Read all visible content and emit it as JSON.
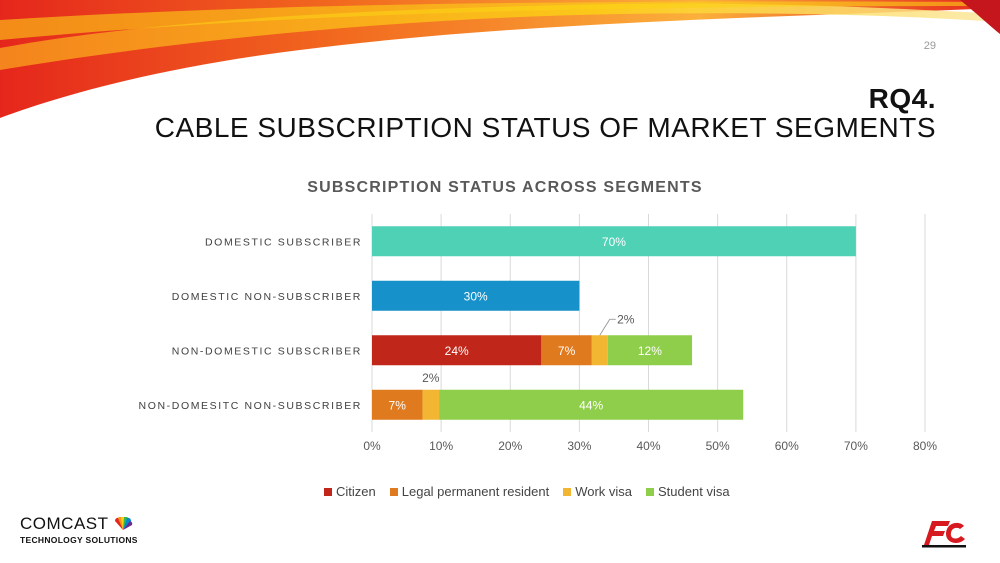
{
  "slide": {
    "page_number": "29",
    "title_line1": "RQ4.",
    "title_line2": "CABLE SUBSCRIPTION STATUS OF MARKET SEGMENTS"
  },
  "chart_data": {
    "type": "bar",
    "orientation": "horizontal",
    "stacked": true,
    "title": "SUBSCRIPTION STATUS ACROSS SEGMENTS",
    "categories": [
      "DOMESTIC SUBSCRIBER",
      "DOMESTIC NON-SUBSCRIBER",
      "NON-DOMESTIC SUBSCRIBER",
      "NON-DOMESITC NON-SUBSCRIBER"
    ],
    "series": [
      {
        "name": "",
        "color": "#4fd1b5",
        "values": [
          70,
          0,
          0,
          0
        ],
        "labels": [
          "70%",
          "",
          "",
          ""
        ]
      },
      {
        "name": "",
        "color": "#1691c9",
        "values": [
          0,
          30,
          0,
          0
        ],
        "labels": [
          "",
          "30%",
          "",
          ""
        ]
      },
      {
        "name": "Citizen",
        "color": "#c0261a",
        "values": [
          0,
          0,
          24.5,
          0
        ],
        "labels": [
          "",
          "",
          "24%",
          ""
        ]
      },
      {
        "name": "Legal permanent resident",
        "color": "#e07a1f",
        "values": [
          0,
          0,
          7.3,
          7.3
        ],
        "labels": [
          "",
          "",
          "7%",
          "7%"
        ]
      },
      {
        "name": "Work visa",
        "color": "#f2b632",
        "values": [
          0,
          0,
          2.3,
          2.4
        ],
        "labels": [
          "",
          "",
          "2%",
          "2%"
        ]
      },
      {
        "name": "Student visa",
        "color": "#8fce4a",
        "values": [
          0,
          0,
          12.2,
          44
        ],
        "labels": [
          "",
          "",
          "12%",
          "44%"
        ]
      }
    ],
    "xlim": [
      0,
      80
    ],
    "xticks": [
      "0%",
      "10%",
      "20%",
      "30%",
      "40%",
      "50%",
      "60%",
      "70%",
      "80%"
    ],
    "grid": true,
    "legend_position": "bottom"
  },
  "legend": [
    {
      "label": "Citizen",
      "color": "#c0261a"
    },
    {
      "label": "Legal permanent resident",
      "color": "#e07a1f"
    },
    {
      "label": "Work visa",
      "color": "#f2b632"
    },
    {
      "label": "Student visa",
      "color": "#8fce4a"
    }
  ],
  "logos": {
    "left_word": "COMCAST",
    "left_tagline": "TECHNOLOGY SOLUTIONS"
  },
  "colors": {
    "title": "#111111",
    "swoosh_red": "#e5261c",
    "swoosh_orange": "#f7941d",
    "swoosh_yellow": "#fcd116"
  }
}
